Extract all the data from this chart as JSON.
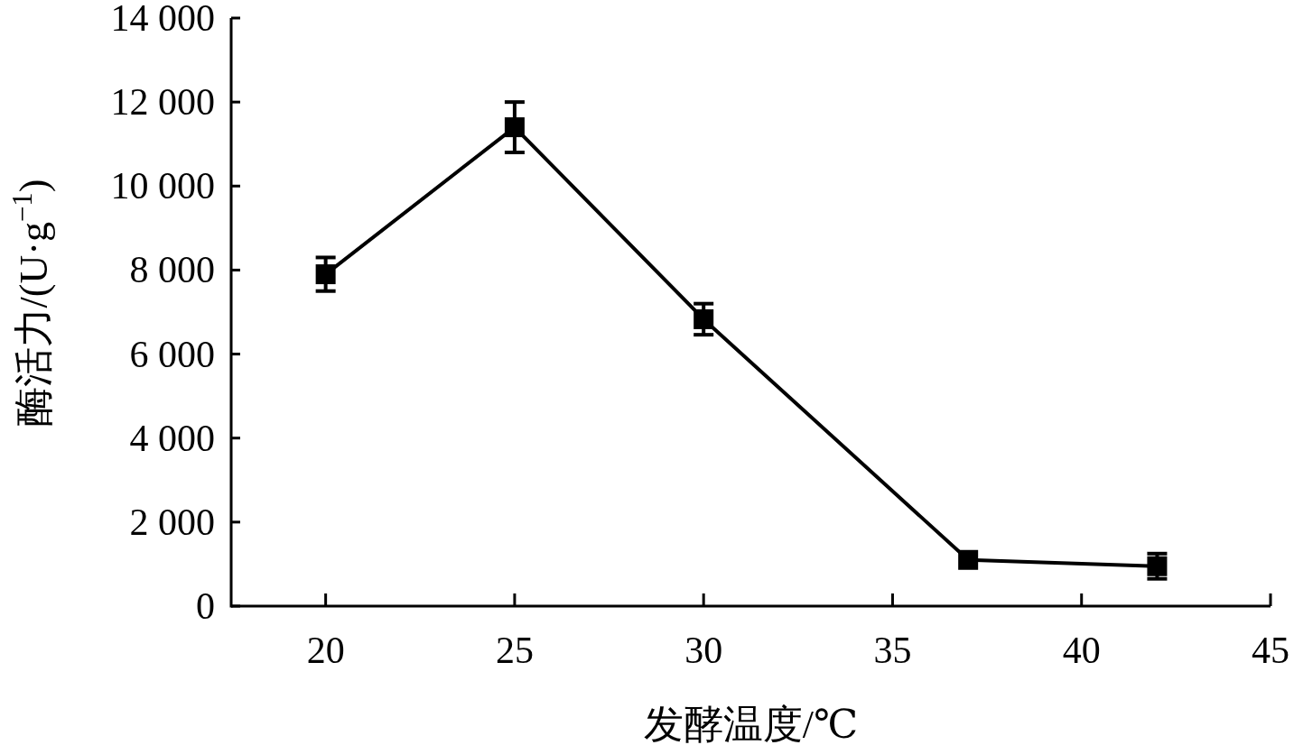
{
  "chart_data": {
    "type": "line",
    "xlabel": "发酵温度/℃",
    "ylabel": "酶活力/(U·g$^{−1}$)",
    "x": [
      20,
      25,
      30,
      37,
      42
    ],
    "series": [
      {
        "color": "#000000",
        "values": [
          7900,
          11400,
          6830,
          1100,
          950
        ],
        "errors": [
          400,
          600,
          370,
          null,
          300
        ]
      }
    ],
    "marker": "square",
    "line_style": "solid",
    "xlim": [
      17.5,
      45
    ],
    "xticks": [
      20,
      25,
      30,
      35,
      40,
      45
    ],
    "ylim": [
      0,
      14000
    ],
    "yticks": [
      0,
      {
        "value": 2000,
        "label": "2 000"
      },
      {
        "value": 4000,
        "label": "4 000"
      },
      {
        "value": 6000,
        "label": "6 000"
      },
      {
        "value": 8000,
        "label": "8 000"
      },
      {
        "value": 10000,
        "label": "10 000"
      },
      {
        "value": 12000,
        "label": "12 000"
      },
      {
        "value": 14000,
        "label": "14 000"
      }
    ],
    "grid": false
  }
}
